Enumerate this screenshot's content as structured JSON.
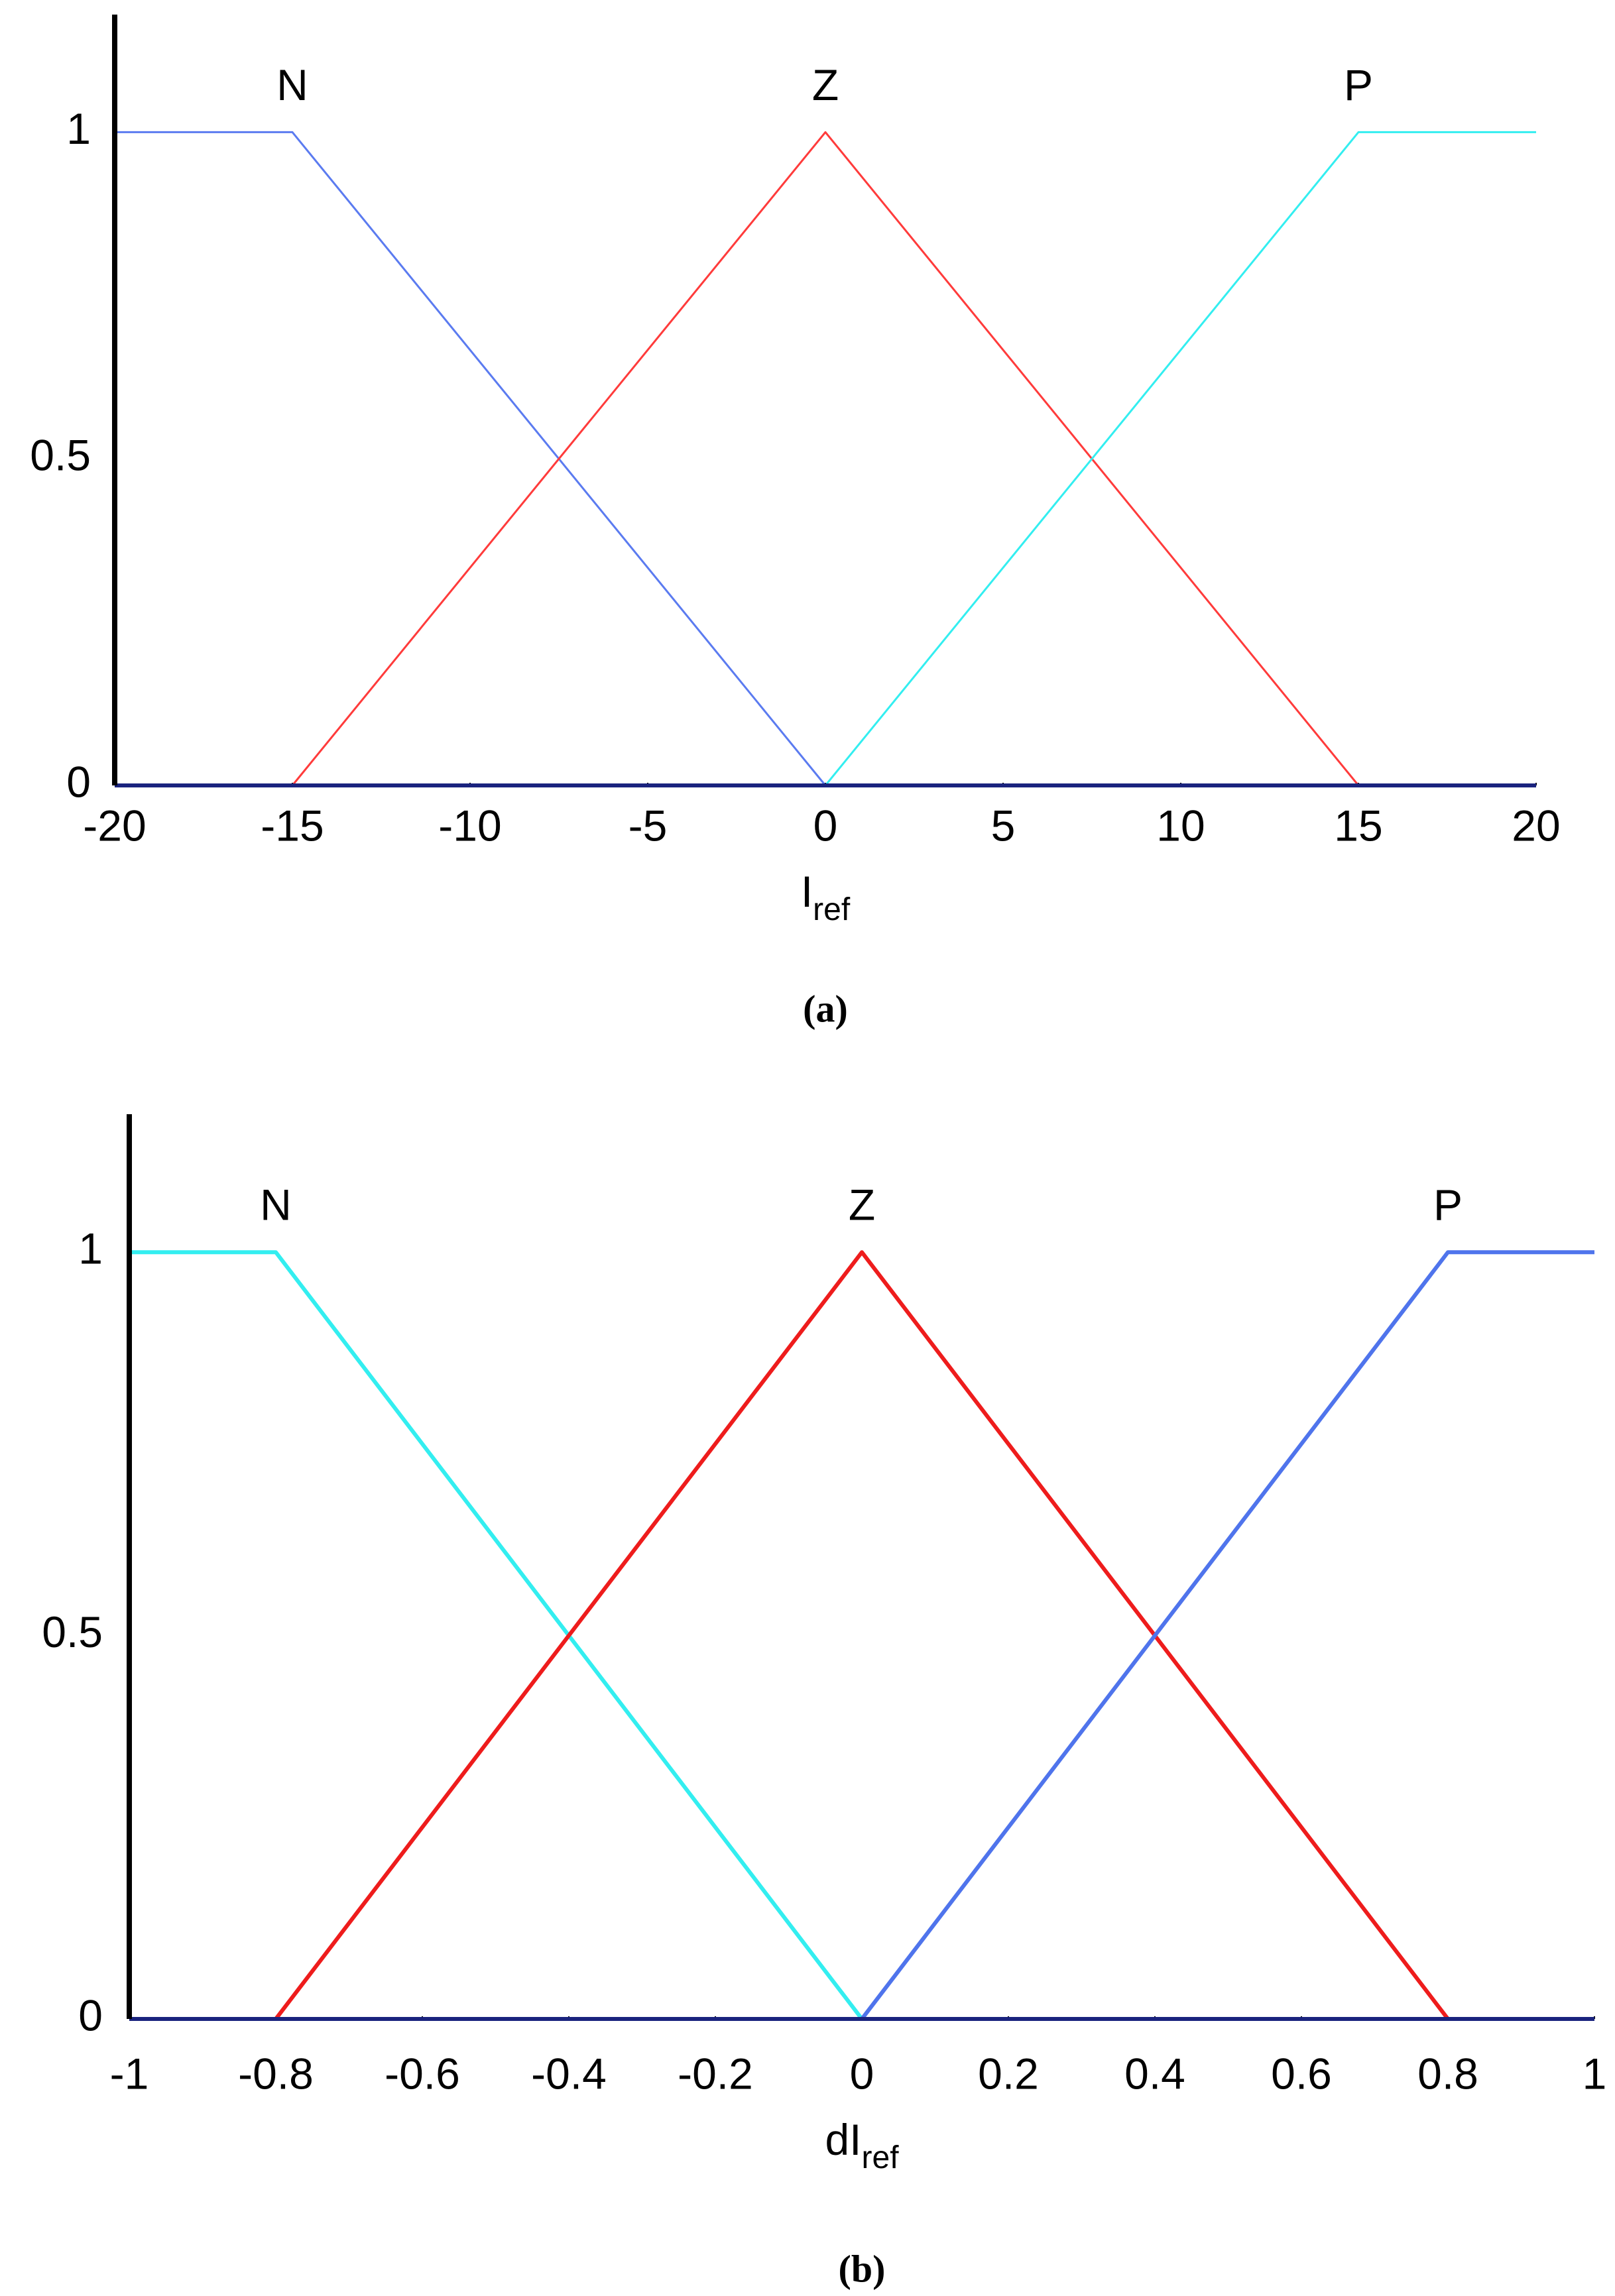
{
  "chart_data": [
    {
      "type": "line",
      "caption": "(a)",
      "x_label": "I",
      "x_label_sub": "ref",
      "xlim": [
        -20,
        20
      ],
      "xticks": [
        -20,
        -15,
        -10,
        -5,
        0,
        5,
        10,
        15,
        20
      ],
      "ylim": [
        0,
        1.18
      ],
      "yticks": [
        0,
        0.5,
        1
      ],
      "grid": false,
      "series": [
        {
          "name": "N",
          "color": "#5b7bf0",
          "x": [
            -20,
            -15,
            0,
            20
          ],
          "values": [
            1,
            1,
            0,
            0
          ]
        },
        {
          "name": "Z",
          "color": "#ff3b3b",
          "x": [
            -20,
            -15,
            0,
            15,
            20
          ],
          "values": [
            0,
            0,
            1,
            0,
            0
          ]
        },
        {
          "name": "P",
          "color": "#33eef0",
          "x": [
            -20,
            0,
            15,
            20
          ],
          "values": [
            0,
            0,
            1,
            1
          ]
        }
      ]
    },
    {
      "type": "line",
      "caption": "(b)",
      "x_label": "dI",
      "x_label_sub": "ref",
      "xlim": [
        -1,
        1
      ],
      "xticks": [
        -1,
        -0.8,
        -0.6,
        -0.4,
        -0.2,
        0,
        0.2,
        0.4,
        0.6,
        0.8,
        1
      ],
      "ylim": [
        0,
        1.18
      ],
      "yticks": [
        0,
        0.5,
        1
      ],
      "grid": false,
      "series": [
        {
          "name": "N",
          "color": "#33eef0",
          "x": [
            -1,
            -0.8,
            0,
            1
          ],
          "values": [
            1,
            1,
            0,
            0
          ]
        },
        {
          "name": "Z",
          "color": "#ee1c1c",
          "x": [
            -1,
            -0.8,
            0,
            0.8,
            1
          ],
          "values": [
            0,
            0,
            1,
            0,
            0
          ]
        },
        {
          "name": "P",
          "color": "#4f74ec",
          "x": [
            -1,
            0,
            0.8,
            1
          ],
          "values": [
            0,
            0,
            1,
            1
          ]
        }
      ]
    }
  ]
}
